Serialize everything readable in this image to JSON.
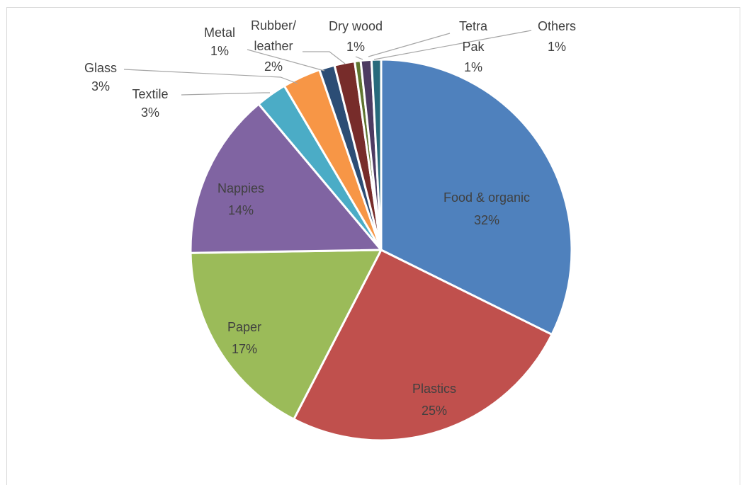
{
  "chart_data": {
    "type": "pie",
    "title": "",
    "start_angle_deg": 0,
    "direction": "clockwise",
    "slices": [
      {
        "label": "Food & organic",
        "value": 32,
        "pct_label": "32%",
        "color": "#4f81bd"
      },
      {
        "label": "Plastics",
        "value": 25,
        "pct_label": "25%",
        "color": "#c0504d"
      },
      {
        "label": "Paper",
        "value": 17,
        "pct_label": "17%",
        "color": "#9bbb59"
      },
      {
        "label": "Nappies",
        "value": 14,
        "pct_label": "14%",
        "color": "#8064a2"
      },
      {
        "label": "Textile",
        "value": 2.6,
        "pct_label": "3%",
        "color": "#4bacc6"
      },
      {
        "label": "Glass",
        "value": 3.2,
        "pct_label": "3%",
        "color": "#f79646"
      },
      {
        "label": "Metal",
        "value": 1.3,
        "pct_label": "1%",
        "color": "#2c4d75"
      },
      {
        "label": "Rubber/ leather",
        "value": 1.7,
        "pct_label": "2%",
        "color": "#772c2a"
      },
      {
        "label": "Dry wood",
        "value": 0.5,
        "pct_label": "1%",
        "color": "#5f7530"
      },
      {
        "label": "Tetra Pak",
        "value": 0.9,
        "pct_label": "1%",
        "color": "#4d3b62"
      },
      {
        "label": "Others",
        "value": 0.8,
        "pct_label": "1%",
        "color": "#276a7c"
      }
    ]
  },
  "labels": {
    "food_name": "Food & organic",
    "food_pct": "32%",
    "plastics_name": "Plastics",
    "plastics_pct": "25%",
    "paper_name": "Paper",
    "paper_pct": "17%",
    "nappies_name": "Nappies",
    "nappies_pct": "14%",
    "textile_name": "Textile",
    "textile_pct": "3%",
    "glass_name": "Glass",
    "glass_pct": "3%",
    "metal_name": "Metal",
    "metal_pct": "1%",
    "rubber_name_1": "Rubber/",
    "rubber_name_2": "leather",
    "rubber_pct": "2%",
    "drywood_name": "Dry wood",
    "drywood_pct": "1%",
    "tetra_name_1": "Tetra",
    "tetra_name_2": "Pak",
    "tetra_pct": "1%",
    "others_name": "Others",
    "others_pct": "1%"
  }
}
